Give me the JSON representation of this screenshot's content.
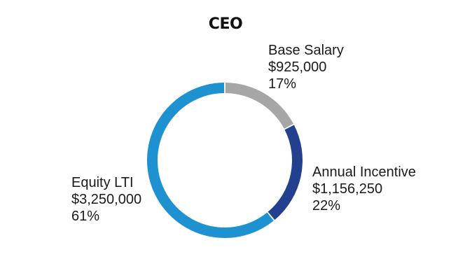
{
  "chart_data": {
    "type": "pie",
    "variant": "donut",
    "title": "CEO",
    "categories": [
      "Base Salary",
      "Annual Incentive",
      "Equity LTI"
    ],
    "amounts": [
      "$925,000",
      "$1,156,250",
      "$3,250,000"
    ],
    "percent_labels": [
      "17%",
      "22%",
      "61%"
    ],
    "values": [
      925000,
      1156250,
      3250000
    ],
    "colors": [
      "#a6a6a6",
      "#23408e",
      "#1e92d0"
    ]
  }
}
